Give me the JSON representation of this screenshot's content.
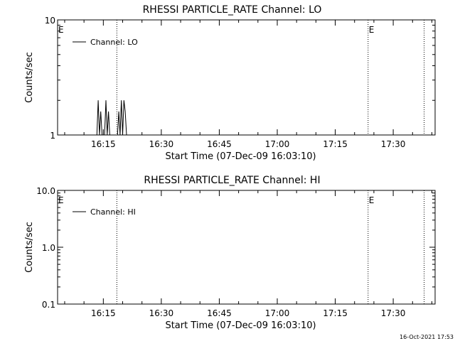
{
  "footer_timestamp": "16-Oct-2021 17:53",
  "chart_data": [
    {
      "type": "line",
      "title": "RHESSI PARTICLE_RATE Channel: LO",
      "xlabel": "Start Time (07-Dec-09 16:03:10)",
      "ylabel": "Counts/sec",
      "y_scale": "log",
      "ylim": [
        1,
        10
      ],
      "xlim": [
        "16:03:10",
        "17:40:50"
      ],
      "x_ticks": [
        "16:15",
        "16:30",
        "16:45",
        "17:00",
        "17:15",
        "17:30"
      ],
      "y_ticks": [
        "1",
        "10"
      ],
      "legend_label": "Channel: LO",
      "legend_position": "top-left",
      "markers": [
        {
          "time": "16:18:30",
          "label": ""
        },
        {
          "time": "17:23:30",
          "label": "E"
        },
        {
          "time": "17:38:00",
          "label": ""
        },
        {
          "time": "16:03:10",
          "label": "E"
        }
      ],
      "series": [
        {
          "values": [
            [
              "16:13:20",
              1
            ],
            [
              "16:13:40",
              2
            ],
            [
              "16:14:00",
              1
            ],
            [
              "16:14:20",
              1.6
            ],
            [
              "16:14:40",
              1
            ],
            [
              "16:15:20",
              1
            ],
            [
              "16:15:40",
              2
            ],
            [
              "16:16:00",
              1
            ],
            [
              "16:16:20",
              1.6
            ],
            [
              "16:16:40",
              1
            ],
            [
              "16:18:40",
              1
            ],
            [
              "16:19:00",
              1.6
            ],
            [
              "16:19:20",
              1
            ],
            [
              "16:19:40",
              2
            ],
            [
              "16:20:00",
              1
            ],
            [
              "16:20:20",
              2
            ],
            [
              "16:20:40",
              1.6
            ],
            [
              "16:21:00",
              1
            ]
          ]
        }
      ]
    },
    {
      "type": "line",
      "title": "RHESSI PARTICLE_RATE Channel: HI",
      "xlabel": "Start Time (07-Dec-09 16:03:10)",
      "ylabel": "Counts/sec",
      "y_scale": "log",
      "ylim": [
        0.1,
        10
      ],
      "xlim": [
        "16:03:10",
        "17:40:50"
      ],
      "x_ticks": [
        "16:15",
        "16:30",
        "16:45",
        "17:00",
        "17:15",
        "17:30"
      ],
      "y_ticks": [
        "0.1",
        "1.0",
        "10.0"
      ],
      "legend_label": "Channel: HI",
      "legend_position": "top-left",
      "markers": [
        {
          "time": "16:18:30",
          "label": ""
        },
        {
          "time": "17:23:30",
          "label": "E"
        },
        {
          "time": "17:38:00",
          "label": ""
        },
        {
          "time": "16:03:10",
          "label": "E"
        }
      ],
      "series": [
        {
          "values": []
        }
      ]
    }
  ]
}
